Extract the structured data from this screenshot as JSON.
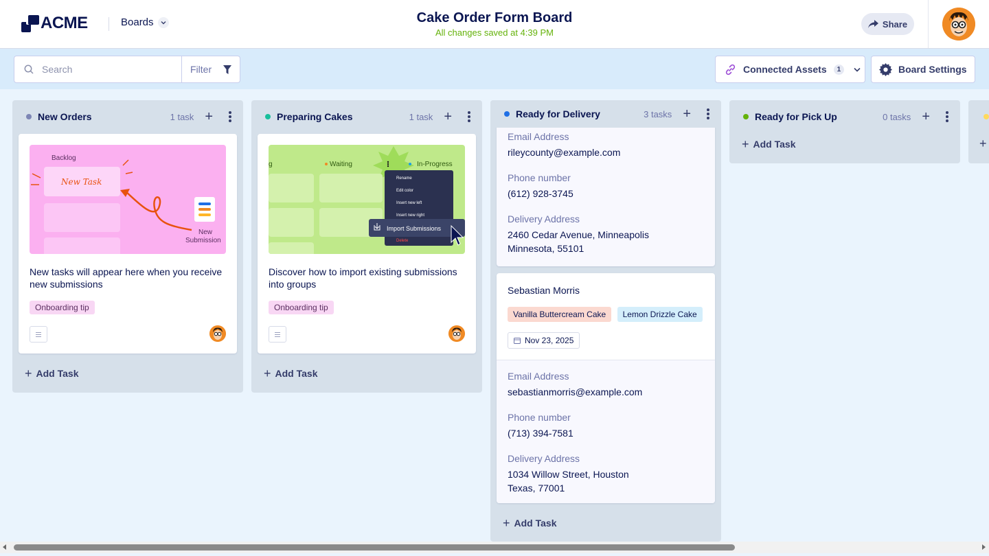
{
  "header": {
    "logo_text": "ACME",
    "boards_label": "Boards",
    "title": "Cake Order Form Board",
    "saved_status": "All changes saved at 4:39 PM",
    "share_label": "Share"
  },
  "toolbar": {
    "search_placeholder": "Search",
    "filter_label": "Filter",
    "connected_assets_label": "Connected Assets",
    "connected_assets_count": "1",
    "board_settings_label": "Board Settings"
  },
  "columns": [
    {
      "title": "New Orders",
      "count": "1 task",
      "dot_color": "#7d86b5",
      "card": {
        "image": {
          "backlog": "Backlog",
          "new_task": "New Task",
          "new": "New",
          "submission": "Submission"
        },
        "text": "New tasks will appear here when you receive new submissions",
        "tag": "Onboarding tip"
      },
      "add_task": "Add Task"
    },
    {
      "title": "Preparing Cakes",
      "count": "1 task",
      "dot_color": "#18bf9c",
      "card": {
        "image": {
          "col_a": "g",
          "waiting": "Waiting",
          "in_progress": "In-Progress",
          "menu": [
            "Rename",
            "Edit color",
            "Insert new left",
            "Insert new right",
            "Delete"
          ],
          "highlight": "Import Submissions"
        },
        "text": "Discover how to import existing submissions into groups",
        "tag": "Onboarding tip"
      },
      "add_task": "Add Task"
    },
    {
      "title": "Ready for Delivery",
      "count": "3 tasks",
      "dot_color": "#1f6fe5",
      "cards": [
        {
          "email_label": "Email Address",
          "email": "rileycounty@example.com",
          "phone_label": "Phone number",
          "phone": "(612) 928-3745",
          "address_label": "Delivery Address",
          "address_line1": "2460 Cedar Avenue, Minneapolis",
          "address_line2": "Minnesota, 55101"
        },
        {
          "name": "Sebastian Morris",
          "tags": [
            "Vanilla Buttercream Cake",
            "Lemon Drizzle Cake"
          ],
          "date": "Nov 23, 2025",
          "email_label": "Email Address",
          "email": "sebastianmorris@example.com",
          "phone_label": "Phone number",
          "phone": "(713) 394-7581",
          "address_label": "Delivery Address",
          "address_line1": "1034 Willow Street, Houston",
          "address_line2": "Texas, 77001"
        }
      ],
      "add_task": "Add Task"
    },
    {
      "title": "Ready for Pick Up",
      "count": "0 tasks",
      "dot_color": "#64b20a",
      "add_task": "Add Task"
    }
  ],
  "colors": {
    "navy": "#0a1551",
    "saved_green": "#64b20a",
    "tag_pink": "#f8d7f4",
    "tag_peach": "#fbd9d0",
    "tag_blue": "#d4eefb"
  }
}
